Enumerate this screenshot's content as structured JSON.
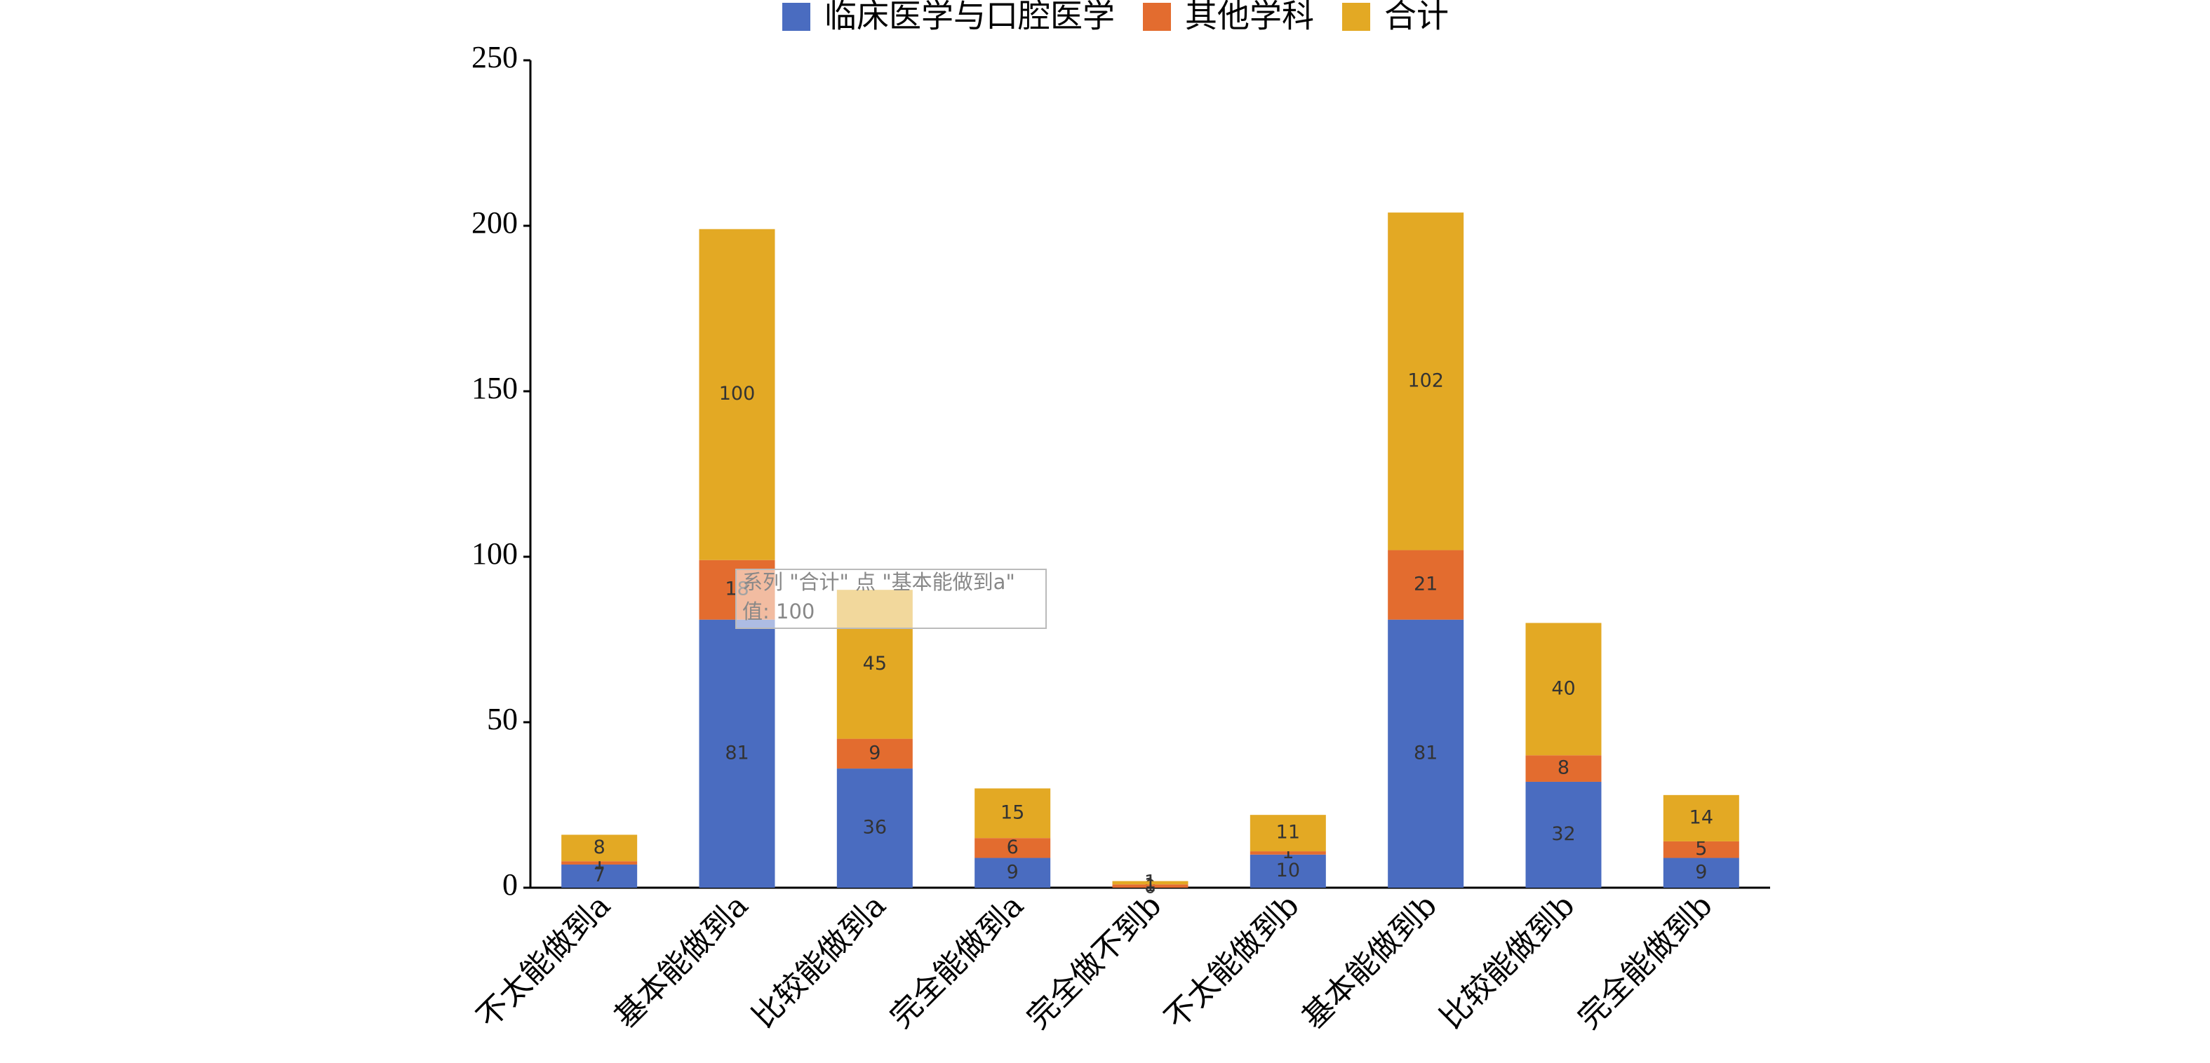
{
  "chart_data": {
    "type": "stacked_bar",
    "categories": [
      "不太能做到a",
      "基本能做到a",
      "比较能做到a",
      "完全能做到a",
      "完全做不到b",
      "不太能做到b",
      "基本能做到b",
      "比较能做到b",
      "完全能做到b"
    ],
    "series": [
      {
        "name": "临床医学与口腔医学",
        "color": "#4a6cc0",
        "values": [
          7,
          81,
          36,
          9,
          0,
          10,
          81,
          32,
          9
        ]
      },
      {
        "name": "其他学科",
        "color": "#e36c2f",
        "values": [
          1,
          18,
          9,
          6,
          1,
          1,
          21,
          8,
          5
        ]
      },
      {
        "name": "合计",
        "color": "#e3a924",
        "values": [
          8,
          100,
          45,
          15,
          1,
          11,
          102,
          40,
          14
        ]
      }
    ],
    "ylim": [
      0,
      250
    ],
    "yticks": [
      0,
      50,
      100,
      150,
      200,
      250
    ],
    "grid": false,
    "tooltip": {
      "title": "系列 \"合计\" 点 \"基本能做到a\"",
      "value": "值: 100"
    }
  }
}
